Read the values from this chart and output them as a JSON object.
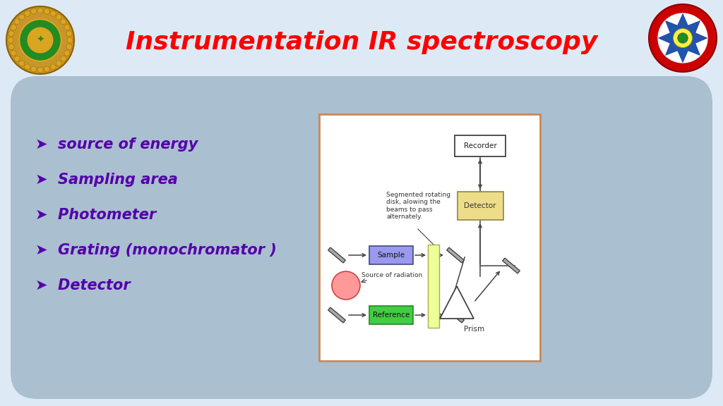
{
  "title": "Instrumentation IR spectroscopy",
  "title_color": "#FF0000",
  "title_fontsize": 26,
  "slide_bg": "#DDEAF5",
  "panel_bg": "#AABFCF",
  "bullet_color": "#5500AA",
  "bullet_symbol": "➤",
  "bullets": [
    "source of energy",
    "Sampling area",
    "Photometer",
    "Grating (monochromator )",
    "Detector"
  ],
  "diagram_border_color": "#CC8855",
  "diagram_bg": "#FFFFFF",
  "sample_color": "#9999EE",
  "reference_color": "#44CC44",
  "detector_color": "#EEDD88",
  "source_color": "#FF9999",
  "disk_color": "#EEFF99",
  "recorder_color": "#FFFFFF",
  "line_color": "#444444"
}
